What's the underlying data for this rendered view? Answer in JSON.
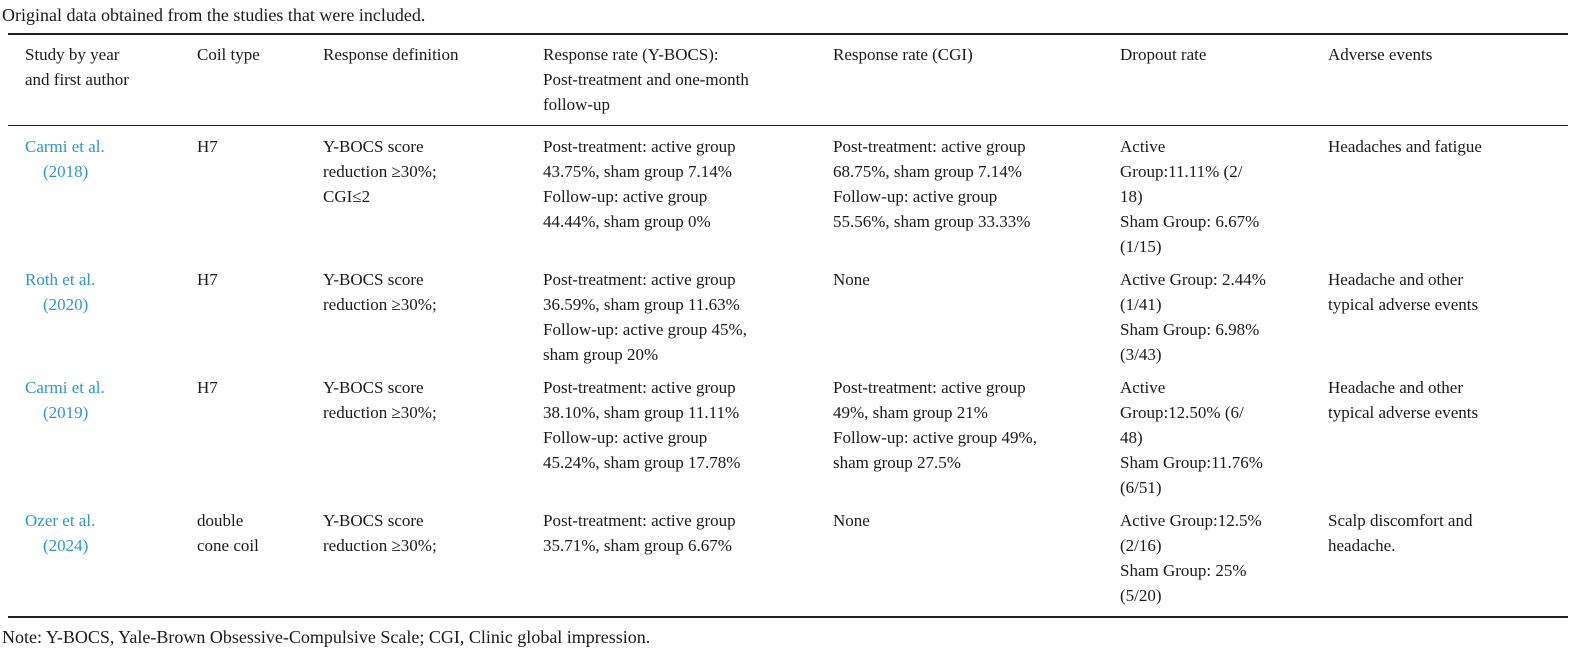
{
  "title": "Original data obtained from the studies that were included.",
  "note": "Note: Y-BOCS, Yale-Brown Obsessive-Compulsive Scale; CGI, Clinic global impression.",
  "colors": {
    "text": "#1a1a1a",
    "rule": "#231f20",
    "study_link": "#2e96cc"
  },
  "columns": [
    "Study by year\nand first author",
    "Coil type",
    "Response definition",
    "Response rate (Y-BOCS):\nPost-treatment and one-month\nfollow-up",
    "Response rate (CGI)",
    "Dropout rate",
    "Adverse events"
  ],
  "rows": [
    {
      "study": "Carmi et al.\n(2018)",
      "coil": "H7",
      "definition": "Y-BOCS score\nreduction ≥30%;\nCGI≤2",
      "ybocs": "Post-treatment: active group\n43.75%, sham group 7.14%\nFollow-up: active group\n44.44%, sham group 0%",
      "cgi": "Post-treatment: active group\n68.75%, sham group 7.14%\nFollow-up: active group\n55.56%, sham group 33.33%",
      "dropout": "Active\nGroup:11.11% (2/\n18)\nSham Group: 6.67%\n(1/15)",
      "adverse": "Headaches and fatigue"
    },
    {
      "study": "Roth et al.\n(2020)",
      "coil": "H7",
      "definition": "Y-BOCS score\nreduction ≥30%;",
      "ybocs": "Post-treatment: active group\n36.59%, sham group 11.63%\nFollow-up: active group 45%,\nsham group 20%",
      "cgi": "None",
      "dropout": "Active Group: 2.44%\n(1/41)\nSham Group: 6.98%\n(3/43)",
      "adverse": "Headache and other\ntypical adverse events"
    },
    {
      "study": "Carmi et al.\n(2019)",
      "coil": "H7",
      "definition": "Y-BOCS score\nreduction ≥30%;",
      "ybocs": "Post-treatment: active group\n38.10%, sham group 11.11%\nFollow-up: active group\n45.24%, sham group 17.78%",
      "cgi": "Post-treatment: active group\n49%, sham group 21%\nFollow-up: active group 49%,\nsham group 27.5%",
      "dropout": "Active\nGroup:12.50% (6/\n48)\nSham Group:11.76%\n(6/51)",
      "adverse": "Headache and other\ntypical adverse events"
    },
    {
      "study": "Ozer et al.\n(2024)",
      "coil": "double\ncone coil",
      "definition": "Y-BOCS score\nreduction ≥30%;",
      "ybocs": "Post-treatment: active group\n35.71%, sham group 6.67%",
      "cgi": "None",
      "dropout": "Active Group:12.5%\n(2/16)\nSham Group: 25%\n(5/20)",
      "adverse": "Scalp discomfort and\nheadache."
    }
  ]
}
